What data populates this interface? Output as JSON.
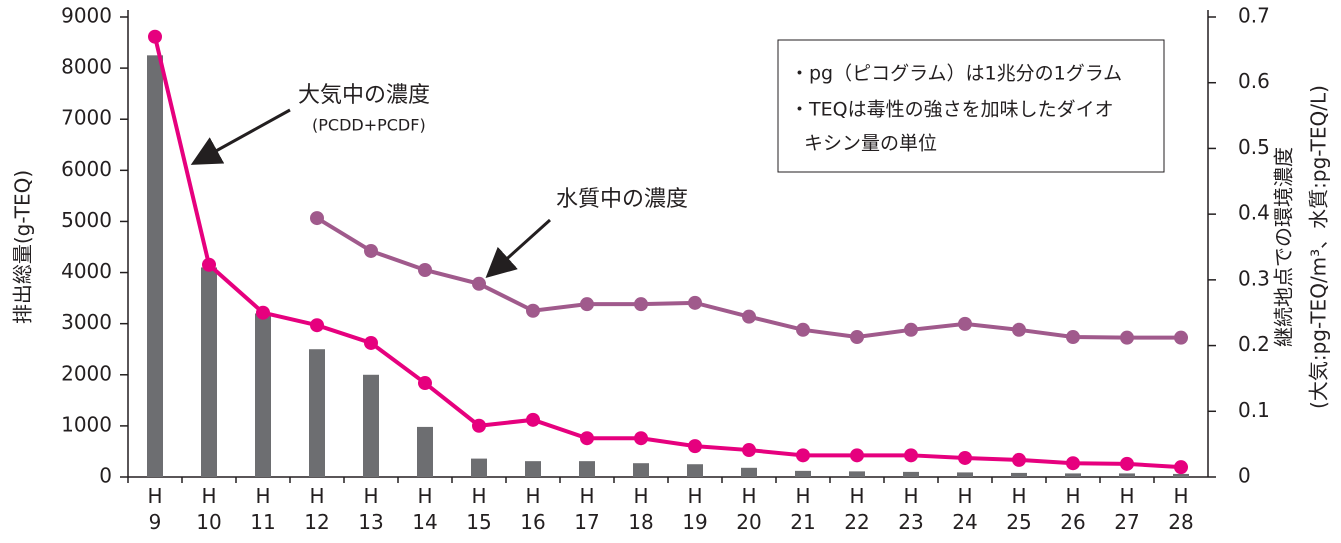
{
  "chart_data": {
    "type": "bar_line",
    "y_label": "排出総量(g-TEQ)",
    "y2_label": [
      "継続地点での環境濃度",
      "(大気:pg-TEQ/m³、水質:pg-TEQ/L)"
    ],
    "annotations": [
      "(PCDD+PCDF)"
    ],
    "notes": [
      "・pg（ピコグラム）は1兆分の1グラム",
      "・TEQは毒性の強さを加味したダイオ",
      "キシン量の単位"
    ],
    "categories": [
      "H\n9",
      "H\n10",
      "H\n11",
      "H\n12",
      "H\n13",
      "H\n14",
      "H\n15",
      "H\n16",
      "H\n17",
      "H\n18",
      "H\n19",
      "H\n20",
      "H\n21",
      "H\n22",
      "H\n23",
      "H\n24",
      "H\n25",
      "H\n26",
      "H\n27",
      "H\n28"
    ],
    "series": [
      {
        "type": "bar",
        "color": "#6d6e71",
        "values": [
          8250,
          4100,
          3200,
          2500,
          2000,
          980,
          360,
          310,
          310,
          270,
          250,
          180,
          120,
          110,
          100,
          90,
          80,
          70,
          70,
          60
        ]
      },
      {
        "type": "line",
        "name": "大気中の濃度",
        "axis": "y2",
        "color": "#e6007e",
        "values": [
          0.67,
          0.323,
          0.25,
          0.231,
          0.204,
          0.143,
          0.078,
          0.087,
          0.059,
          0.059,
          0.047,
          0.041,
          0.033,
          0.033,
          0.033,
          0.029,
          0.026,
          0.021,
          0.02,
          0.015
        ]
      },
      {
        "type": "line",
        "name": "水質中の濃度",
        "axis": "y2",
        "color": "#a05a8c",
        "values": [
          null,
          null,
          null,
          0.394,
          0.344,
          0.315,
          0.294,
          0.253,
          0.263,
          0.263,
          0.265,
          0.244,
          0.224,
          0.213,
          0.224,
          0.233,
          0.224,
          0.213,
          0.212,
          0.212
        ]
      }
    ],
    "ylim": [
      0,
      9000
    ],
    "yticks": [
      0,
      1000,
      2000,
      3000,
      4000,
      5000,
      6000,
      7000,
      8000,
      9000
    ],
    "y2lim": [
      0,
      0.7
    ],
    "y2ticks": [
      0,
      0.1,
      0.2,
      0.3,
      0.4,
      0.5,
      0.6,
      0.7
    ]
  }
}
